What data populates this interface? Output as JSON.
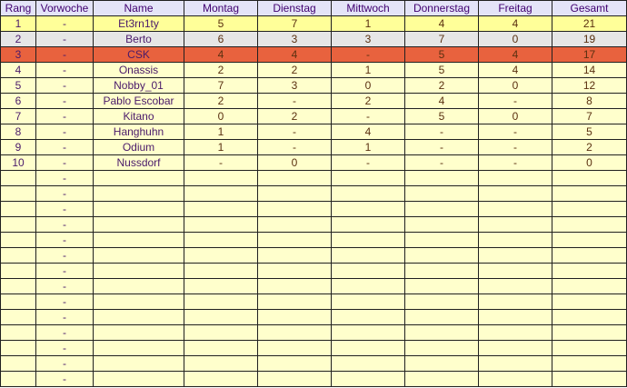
{
  "headers": [
    "Rang",
    "Vorwoche",
    "Name",
    "Montag",
    "Dienstag",
    "Mittwoch",
    "Donnerstag",
    "Freitag",
    "Gesamt"
  ],
  "colors": {
    "header": "#e4e4f8",
    "first": "#ffff99",
    "second": "#e6e6e6",
    "third": "#e8623e",
    "normal": "#ffffcc"
  },
  "rows": [
    [
      "1",
      "-",
      "Et3rn1ty",
      "5",
      "7",
      "1",
      "4",
      "4",
      "21"
    ],
    [
      "2",
      "-",
      "Berto",
      "6",
      "3",
      "3",
      "7",
      "0",
      "19"
    ],
    [
      "3",
      "-",
      "CSK",
      "4",
      "4",
      "-",
      "5",
      "4",
      "17"
    ],
    [
      "4",
      "-",
      "Onassis",
      "2",
      "2",
      "1",
      "5",
      "4",
      "14"
    ],
    [
      "5",
      "-",
      "Nobby_01",
      "7",
      "3",
      "0",
      "2",
      "0",
      "12"
    ],
    [
      "6",
      "-",
      "Pablo Escobar",
      "2",
      "-",
      "2",
      "4",
      "-",
      "8"
    ],
    [
      "7",
      "-",
      "Kitano",
      "0",
      "2",
      "-",
      "5",
      "0",
      "7"
    ],
    [
      "8",
      "-",
      "Hanghuhn",
      "1",
      "-",
      "4",
      "-",
      "-",
      "5"
    ],
    [
      "9",
      "-",
      "Odium",
      "1",
      "-",
      "1",
      "-",
      "-",
      "2"
    ],
    [
      "10",
      "-",
      "Nussdorf",
      "-",
      "0",
      "-",
      "-",
      "-",
      "0"
    ],
    [
      "",
      "-",
      "",
      "",
      "",
      "",
      "",
      "",
      ""
    ],
    [
      "",
      "-",
      "",
      "",
      "",
      "",
      "",
      "",
      ""
    ],
    [
      "",
      "-",
      "",
      "",
      "",
      "",
      "",
      "",
      ""
    ],
    [
      "",
      "-",
      "",
      "",
      "",
      "",
      "",
      "",
      ""
    ],
    [
      "",
      "-",
      "",
      "",
      "",
      "",
      "",
      "",
      ""
    ],
    [
      "",
      "-",
      "",
      "",
      "",
      "",
      "",
      "",
      ""
    ],
    [
      "",
      "-",
      "",
      "",
      "",
      "",
      "",
      "",
      ""
    ],
    [
      "",
      "-",
      "",
      "",
      "",
      "",
      "",
      "",
      ""
    ],
    [
      "",
      "-",
      "",
      "",
      "",
      "",
      "",
      "",
      ""
    ],
    [
      "",
      "-",
      "",
      "",
      "",
      "",
      "",
      "",
      ""
    ],
    [
      "",
      "-",
      "",
      "",
      "",
      "",
      "",
      "",
      ""
    ],
    [
      "",
      "-",
      "",
      "",
      "",
      "",
      "",
      "",
      ""
    ],
    [
      "",
      "-",
      "",
      "",
      "",
      "",
      "",
      "",
      ""
    ],
    [
      "",
      "-",
      "",
      "",
      "",
      "",
      "",
      "",
      ""
    ]
  ]
}
